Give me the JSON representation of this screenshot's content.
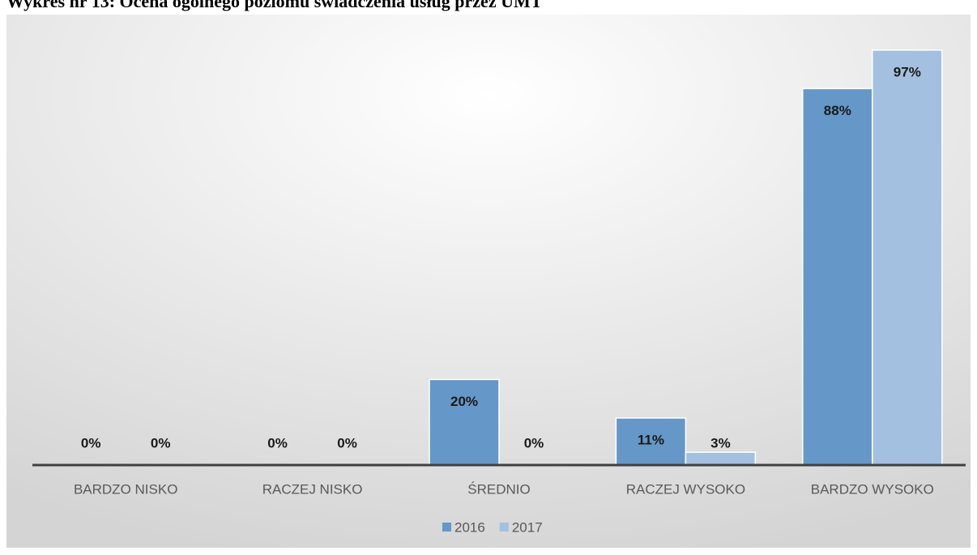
{
  "chart_data": {
    "type": "bar",
    "title": "Wykres nr 13: Ocena ogólnego poziomu świadczenia usług przez UMT",
    "categories": [
      "BARDZO NISKO",
      "RACZEJ NISKO",
      "ŚREDNIO",
      "RACZEJ WYSOKO",
      "BARDZO WYSOKO"
    ],
    "series": [
      {
        "name": "2016",
        "color": "#6598c8",
        "values": [
          0,
          0,
          20,
          11,
          88
        ],
        "value_labels": [
          "0%",
          "0%",
          "20%",
          "11%",
          "88%"
        ]
      },
      {
        "name": "2017",
        "color": "#a3c0e0",
        "values": [
          0,
          0,
          0,
          3,
          97
        ],
        "value_labels": [
          "0%",
          "0%",
          "0%",
          "3%",
          "97%"
        ]
      }
    ],
    "ylim": [
      0,
      100
    ],
    "legend": "bottom"
  }
}
